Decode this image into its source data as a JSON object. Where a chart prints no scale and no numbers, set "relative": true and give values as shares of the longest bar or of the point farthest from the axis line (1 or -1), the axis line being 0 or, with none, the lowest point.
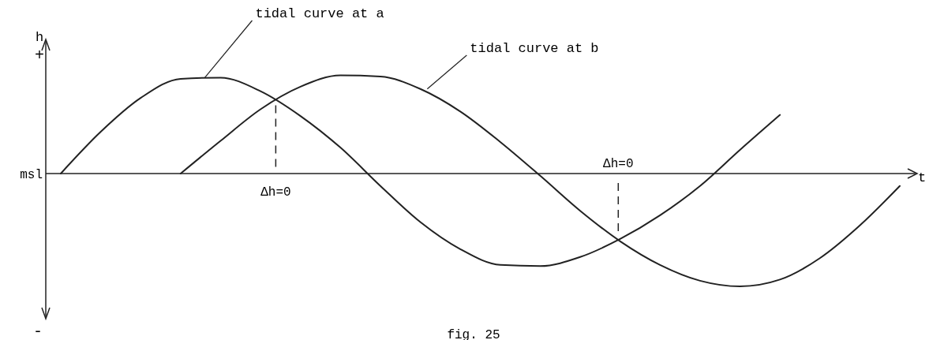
{
  "chart_data": {
    "type": "line",
    "relative": true,
    "xlabel": "t",
    "ylabel": "h",
    "categories": [
      null,
      null,
      null,
      null,
      null,
      null,
      null,
      null,
      null,
      null,
      null,
      null,
      null,
      null,
      null,
      null,
      null,
      null,
      null,
      null,
      null,
      null
    ],
    "series": [
      {
        "name": "tidal curve at a",
        "color": "#222222",
        "values": [
          0,
          0.37,
          0.67,
          0.84,
          0.85,
          0.73,
          0.51,
          0.23,
          -0.11,
          -0.43,
          -0.67,
          -0.81,
          -0.82,
          -0.74,
          -0.58,
          -0.37,
          -0.11,
          0.21,
          0.52,
          null,
          null,
          null
        ]
      },
      {
        "name": "tidal curve at b",
        "color": "#222222",
        "values": [
          null,
          null,
          null,
          0,
          0.29,
          0.57,
          0.77,
          0.87,
          0.86,
          0.75,
          0.55,
          0.28,
          -0.02,
          -0.33,
          -0.6,
          -0.81,
          -0.95,
          -1,
          -0.94,
          -0.75,
          -0.46,
          -0.11
        ]
      }
    ],
    "annotations": [
      "Δh=0",
      "Δh=0",
      "msl",
      "+",
      "-",
      "fig. 25"
    ],
    "grid": false
  }
}
